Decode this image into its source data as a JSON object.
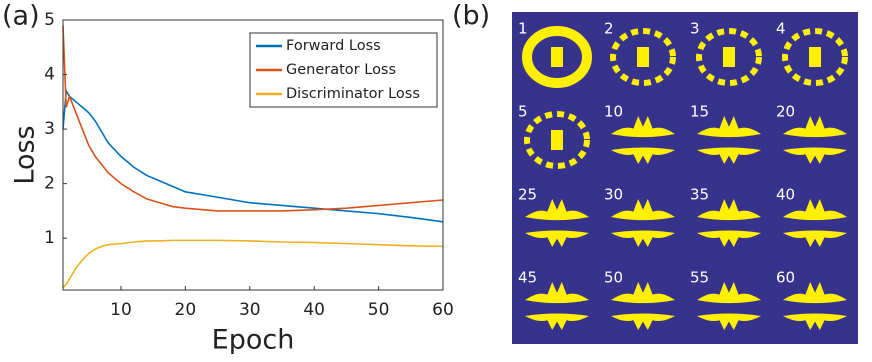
{
  "panel_labels": [
    "(a)",
    "(b)"
  ],
  "chart_data": {
    "type": "line",
    "x_label": "Epoch",
    "y_label": "Loss",
    "x": [
      1,
      1.5,
      2,
      3,
      4,
      5,
      6,
      7,
      8,
      10,
      12,
      14,
      16,
      18,
      20,
      25,
      30,
      35,
      40,
      45,
      50,
      55,
      60
    ],
    "series": [
      {
        "name": "Forward Loss",
        "color": "#0072bd",
        "values": [
          3.0,
          3.7,
          3.6,
          3.5,
          3.4,
          3.3,
          3.15,
          2.95,
          2.75,
          2.5,
          2.3,
          2.15,
          2.05,
          1.95,
          1.85,
          1.75,
          1.65,
          1.6,
          1.55,
          1.5,
          1.45,
          1.38,
          1.3
        ]
      },
      {
        "name": "Generator Loss",
        "color": "#d95319",
        "values": [
          4.9,
          3.4,
          3.6,
          3.3,
          3.0,
          2.7,
          2.5,
          2.35,
          2.2,
          2.0,
          1.85,
          1.72,
          1.65,
          1.58,
          1.55,
          1.5,
          1.5,
          1.5,
          1.52,
          1.55,
          1.6,
          1.65,
          1.7
        ]
      },
      {
        "name": "Discriminator Loss",
        "color": "#edb120",
        "values": [
          0.1,
          0.15,
          0.25,
          0.45,
          0.6,
          0.72,
          0.8,
          0.85,
          0.88,
          0.9,
          0.93,
          0.95,
          0.95,
          0.96,
          0.96,
          0.96,
          0.95,
          0.93,
          0.92,
          0.9,
          0.88,
          0.86,
          0.85
        ]
      }
    ],
    "xlim": [
      1,
      60
    ],
    "xticks": [
      10,
      20,
      30,
      40,
      50,
      60
    ],
    "ylim": [
      0.05,
      5
    ],
    "yticks": [
      1,
      2,
      3,
      4,
      5
    ],
    "grid": false,
    "legend": "upper right"
  },
  "image_grid": {
    "labels": [
      "1",
      "2",
      "3",
      "4",
      "5",
      "10",
      "15",
      "20",
      "25",
      "30",
      "35",
      "40",
      "45",
      "50",
      "55",
      "60"
    ]
  }
}
